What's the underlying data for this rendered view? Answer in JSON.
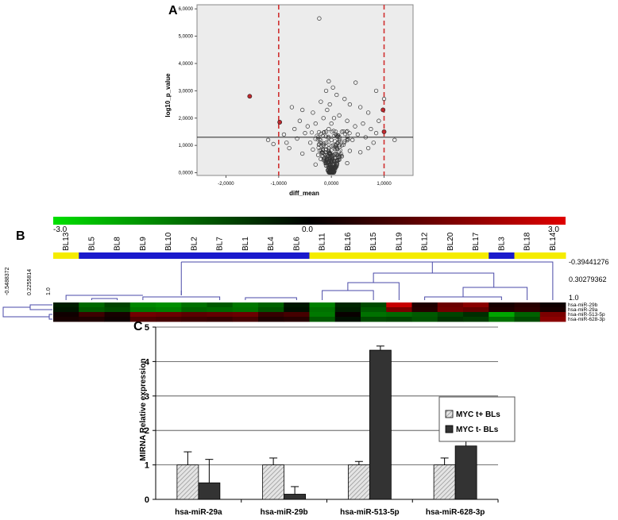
{
  "panel_a": {
    "label": "A",
    "chart_data": {
      "type": "scatter",
      "xlabel": "diff_mean",
      "ylabel": "log10_p_value",
      "xlim": [
        -2.55,
        1.55
      ],
      "ylim": [
        -0.1,
        6.15
      ],
      "x_ticks": [
        "-2,0000",
        "-1,0000",
        "0,0000",
        "1,0000"
      ],
      "x_tick_values": [
        -2,
        -1,
        0,
        1
      ],
      "y_ticks": [
        "0,0000",
        "1,0000",
        "2,0000",
        "3,0000",
        "4,0000",
        "5,0000",
        "6,0000"
      ],
      "y_tick_values": [
        0,
        1,
        2,
        3,
        4,
        5,
        6
      ],
      "hline": 1.3,
      "vlines": [
        -1,
        1
      ],
      "grid": false,
      "colors": {
        "points": "#333333",
        "highlight": "#c0282d",
        "threshold": "#d03030",
        "background": "#ececec"
      },
      "highlighted_points": [
        {
          "x": -1.55,
          "y": 2.8
        },
        {
          "x": -0.98,
          "y": 1.85
        },
        {
          "x": 0.98,
          "y": 2.3
        },
        {
          "x": 1.0,
          "y": 1.5
        }
      ],
      "points": [
        {
          "x": -0.23,
          "y": 5.65
        },
        {
          "x": -0.05,
          "y": 3.35
        },
        {
          "x": 0.03,
          "y": 3.12
        },
        {
          "x": 0.46,
          "y": 3.3
        },
        {
          "x": 0.85,
          "y": 3.0
        },
        {
          "x": 1.0,
          "y": 2.7
        },
        {
          "x": -0.1,
          "y": 3.0
        },
        {
          "x": 0.1,
          "y": 2.85
        },
        {
          "x": -0.75,
          "y": 2.4
        },
        {
          "x": -0.55,
          "y": 2.3
        },
        {
          "x": -0.35,
          "y": 2.2
        },
        {
          "x": -0.2,
          "y": 2.6
        },
        {
          "x": 0.25,
          "y": 2.7
        },
        {
          "x": 0.35,
          "y": 2.5
        },
        {
          "x": 0.55,
          "y": 2.4
        },
        {
          "x": 0.7,
          "y": 2.2
        },
        {
          "x": -1.2,
          "y": 1.2
        },
        {
          "x": -1.1,
          "y": 1.05
        },
        {
          "x": -0.9,
          "y": 1.4
        },
        {
          "x": -0.85,
          "y": 1.1
        },
        {
          "x": -0.7,
          "y": 1.6
        },
        {
          "x": -0.65,
          "y": 1.25
        },
        {
          "x": -0.6,
          "y": 1.9
        },
        {
          "x": -0.5,
          "y": 1.45
        },
        {
          "x": -0.45,
          "y": 1.7
        },
        {
          "x": -0.4,
          "y": 1.1
        },
        {
          "x": -0.3,
          "y": 1.8
        },
        {
          "x": -0.25,
          "y": 1.3
        },
        {
          "x": -0.15,
          "y": 2.0
        },
        {
          "x": 0.15,
          "y": 2.1
        },
        {
          "x": 0.2,
          "y": 1.5
        },
        {
          "x": 0.3,
          "y": 1.9
        },
        {
          "x": 0.4,
          "y": 1.2
        },
        {
          "x": 0.45,
          "y": 1.7
        },
        {
          "x": 0.5,
          "y": 1.4
        },
        {
          "x": 0.6,
          "y": 1.8
        },
        {
          "x": 0.65,
          "y": 1.3
        },
        {
          "x": 0.75,
          "y": 1.6
        },
        {
          "x": 0.8,
          "y": 1.1
        },
        {
          "x": 0.9,
          "y": 1.9
        },
        {
          "x": 1.2,
          "y": 1.2
        },
        {
          "x": 0.85,
          "y": 1.45
        },
        {
          "x": -0.8,
          "y": 0.9
        },
        {
          "x": -0.55,
          "y": 0.7
        },
        {
          "x": -0.35,
          "y": 0.85
        },
        {
          "x": 0.35,
          "y": 0.8
        },
        {
          "x": 0.55,
          "y": 0.75
        },
        {
          "x": 0.7,
          "y": 0.9
        },
        {
          "x": -0.2,
          "y": 0.5
        },
        {
          "x": -0.15,
          "y": 1.0
        },
        {
          "x": -0.1,
          "y": 0.4
        },
        {
          "x": -0.1,
          "y": 1.5
        },
        {
          "x": -0.08,
          "y": 2.3
        },
        {
          "x": -0.05,
          "y": 0.2
        },
        {
          "x": -0.05,
          "y": 0.9
        },
        {
          "x": -0.05,
          "y": 1.6
        },
        {
          "x": -0.03,
          "y": 2.5
        },
        {
          "x": -0.02,
          "y": 0.05
        },
        {
          "x": 0.0,
          "y": 0.6
        },
        {
          "x": 0.0,
          "y": 1.2
        },
        {
          "x": 0.0,
          "y": 1.8
        },
        {
          "x": 0.02,
          "y": 0.3
        },
        {
          "x": 0.03,
          "y": 1.0
        },
        {
          "x": 0.05,
          "y": 0.15
        },
        {
          "x": 0.05,
          "y": 2.0
        },
        {
          "x": 0.08,
          "y": 0.7
        },
        {
          "x": 0.1,
          "y": 1.35
        },
        {
          "x": 0.12,
          "y": 0.45
        },
        {
          "x": 0.15,
          "y": 0.95
        },
        {
          "x": 0.2,
          "y": 0.6
        },
        {
          "x": 0.25,
          "y": 1.15
        },
        {
          "x": -0.25,
          "y": 0.65
        },
        {
          "x": 0.3,
          "y": 0.35
        },
        {
          "x": -0.3,
          "y": 0.3
        }
      ]
    }
  },
  "panel_b": {
    "label": "B",
    "scale_labels": [
      "-3.0",
      "0.0",
      "3.0"
    ],
    "colors": {
      "low": "#00e000",
      "mid": "#000000",
      "high": "#e00000",
      "group_yellow": "#f5ec00",
      "group_blue": "#1a1acc",
      "tree": "#4a4aa8"
    },
    "samples": [
      "BL13",
      "BL5",
      "BL8",
      "BL9",
      "BL10",
      "BL2",
      "BL7",
      "BL1",
      "BL4",
      "BL6",
      "BL11",
      "BL16",
      "BL15",
      "BL19",
      "BL12",
      "BL20",
      "BL17",
      "BL3",
      "BL18",
      "BL14"
    ],
    "groups": [
      "yellow",
      "blue",
      "blue",
      "blue",
      "blue",
      "blue",
      "blue",
      "blue",
      "blue",
      "blue",
      "yellow",
      "yellow",
      "yellow",
      "yellow",
      "yellow",
      "yellow",
      "yellow",
      "blue",
      "yellow",
      "yellow"
    ],
    "row_labels": [
      "hsa-miR-29b",
      "hsa-miR-29a",
      "hsa-miR-513-5p",
      "hsa-miR-628-3p"
    ],
    "col_tree_labels": [
      "-0.39441276",
      "0.30279362",
      "1.0"
    ],
    "row_tree_labels": [
      "-0.5488372",
      "0.2255814",
      "1.0"
    ],
    "matrix": [
      [
        -0.4,
        -1.4,
        -0.9,
        -1.8,
        -1.9,
        -1.5,
        -1.2,
        -1.6,
        -1.3,
        -0.3,
        -1.7,
        -0.5,
        -1.0,
        2.6,
        0.4,
        1.4,
        1.8,
        0.3,
        0.5,
        0.2
      ],
      [
        -0.3,
        -1.2,
        -1.0,
        -1.6,
        -1.7,
        -1.3,
        -1.4,
        -1.5,
        -1.1,
        -0.2,
        -1.5,
        -0.4,
        -1.2,
        1.6,
        0.5,
        1.5,
        1.3,
        0.4,
        0.6,
        0.3
      ],
      [
        0.2,
        0.8,
        0.3,
        1.5,
        1.4,
        1.2,
        1.3,
        1.4,
        0.7,
        0.9,
        -1.6,
        0.1,
        -1.5,
        -1.4,
        -1.2,
        -0.9,
        -0.6,
        -2.2,
        -1.3,
        1.6
      ],
      [
        0.3,
        0.4,
        0.2,
        1.0,
        0.9,
        0.8,
        0.7,
        0.9,
        0.4,
        0.5,
        -1.2,
        -0.2,
        -1.0,
        -0.9,
        -1.1,
        -0.7,
        -0.8,
        -1.5,
        -1.0,
        1.8
      ]
    ]
  },
  "panel_c": {
    "label": "C",
    "chart_data": {
      "type": "bar",
      "categories": [
        "hsa-miR-29a",
        "hsa-miR-29b",
        "hsa-miR-513-5p",
        "hsa-miR-628-3p"
      ],
      "ylabel": "MIRNA Relative expression",
      "ylim": [
        0,
        5
      ],
      "y_ticks": [
        "0",
        "1",
        "2",
        "3",
        "4",
        "5"
      ],
      "y_tick_values": [
        0,
        1,
        2,
        3,
        4,
        5
      ],
      "legend_position": "right",
      "series": [
        {
          "name": "MYC t+ BLs",
          "values": [
            1.0,
            1.0,
            1.0,
            1.0
          ],
          "errors": [
            0.38,
            0.2,
            0.1,
            0.2
          ],
          "color": "#dcdcdc",
          "pattern": "hatched"
        },
        {
          "name": "MYC t- BLs",
          "values": [
            0.48,
            0.15,
            4.33,
            1.55
          ],
          "errors": [
            0.68,
            0.22,
            0.12,
            0.6
          ],
          "color": "#333333",
          "pattern": "solid"
        }
      ]
    }
  }
}
